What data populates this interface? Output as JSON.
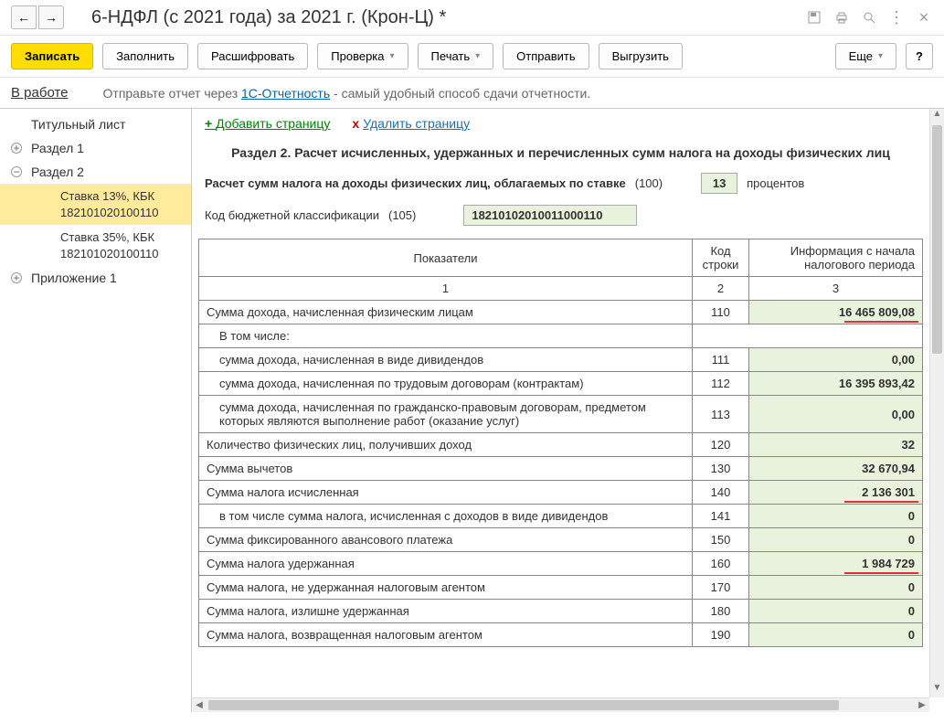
{
  "header": {
    "title": "6-НДФЛ (с 2021 года) за 2021 г. (Крон-Ц) *"
  },
  "toolbar": {
    "save": "Записать",
    "fill": "Заполнить",
    "decode": "Расшифровать",
    "check": "Проверка",
    "print": "Печать",
    "send": "Отправить",
    "export": "Выгрузить",
    "more": "Еще",
    "help": "?"
  },
  "status": {
    "state": "В работе",
    "prefix": "Отправьте отчет через ",
    "link": "1С-Отчетность",
    "suffix": " - самый удобный способ сдачи отчетности."
  },
  "sidebar": {
    "items": [
      {
        "label": "Титульный лист",
        "expand": "",
        "level": 1
      },
      {
        "label": "Раздел 1",
        "expand": "+",
        "level": 1
      },
      {
        "label": "Раздел 2",
        "expand": "−",
        "level": 1
      },
      {
        "label": "Ставка 13%, КБК 182101020100110",
        "level": 2,
        "selected": true
      },
      {
        "label": "Ставка 35%, КБК 182101020100110",
        "level": 2
      },
      {
        "label": "Приложение 1",
        "expand": "+",
        "level": 1
      }
    ]
  },
  "pageActions": {
    "add": "Добавить страницу",
    "del": "Удалить страницу"
  },
  "sectionTitle": "Раздел 2. Расчет исчисленных, удержанных и перечисленных сумм налога на доходы физических лиц",
  "params": {
    "rate_label": "Расчет сумм налога на доходы физических лиц, облагаемых по ставке",
    "rate_code": "(100)",
    "rate_value": "13",
    "rate_unit": "процентов",
    "kbk_label": "Код бюджетной классификации",
    "kbk_code": "(105)",
    "kbk_value": "18210102010011000110"
  },
  "table": {
    "head": {
      "c1": "Показатели",
      "c2": "Код строки",
      "c3": "Информация с начала налогового периода"
    },
    "subhead": {
      "c1": "1",
      "c2": "2",
      "c3": "3"
    },
    "rows": [
      {
        "label": "Сумма дохода, начисленная физическим лицам",
        "code": "110",
        "value": "16 465 809,08",
        "red": true
      },
      {
        "label": "В том числе:",
        "code": "",
        "value": "",
        "noborder": true
      },
      {
        "label": "сумма дохода, начисленная в виде дивидендов",
        "code": "111",
        "value": "0,00",
        "indent": true
      },
      {
        "label": "сумма дохода, начисленная по трудовым договорам (контрактам)",
        "code": "112",
        "value": "16 395 893,42",
        "indent": true
      },
      {
        "label": "сумма дохода, начисленная по гражданско-правовым договорам, предметом которых являются выполнение работ (оказание услуг)",
        "code": "113",
        "value": "0,00",
        "indent": true
      },
      {
        "label": "Количество физических лиц, получивших доход",
        "code": "120",
        "value": "32"
      },
      {
        "label": "Сумма вычетов",
        "code": "130",
        "value": "32 670,94"
      },
      {
        "label": "Сумма налога исчисленная",
        "code": "140",
        "value": "2 136 301",
        "red": true
      },
      {
        "label": "в том числе сумма налога, исчисленная с доходов в виде дивидендов",
        "code": "141",
        "value": "0",
        "indent": true
      },
      {
        "label": "Сумма фиксированного авансового платежа",
        "code": "150",
        "value": "0"
      },
      {
        "label": "Сумма налога удержанная",
        "code": "160",
        "value": "1 984 729",
        "red": true
      },
      {
        "label": "Сумма налога, не удержанная налоговым агентом",
        "code": "170",
        "value": "0"
      },
      {
        "label": "Сумма налога, излишне удержанная",
        "code": "180",
        "value": "0"
      },
      {
        "label": "Сумма налога, возвращенная налоговым агентом",
        "code": "190",
        "value": "0"
      }
    ]
  }
}
